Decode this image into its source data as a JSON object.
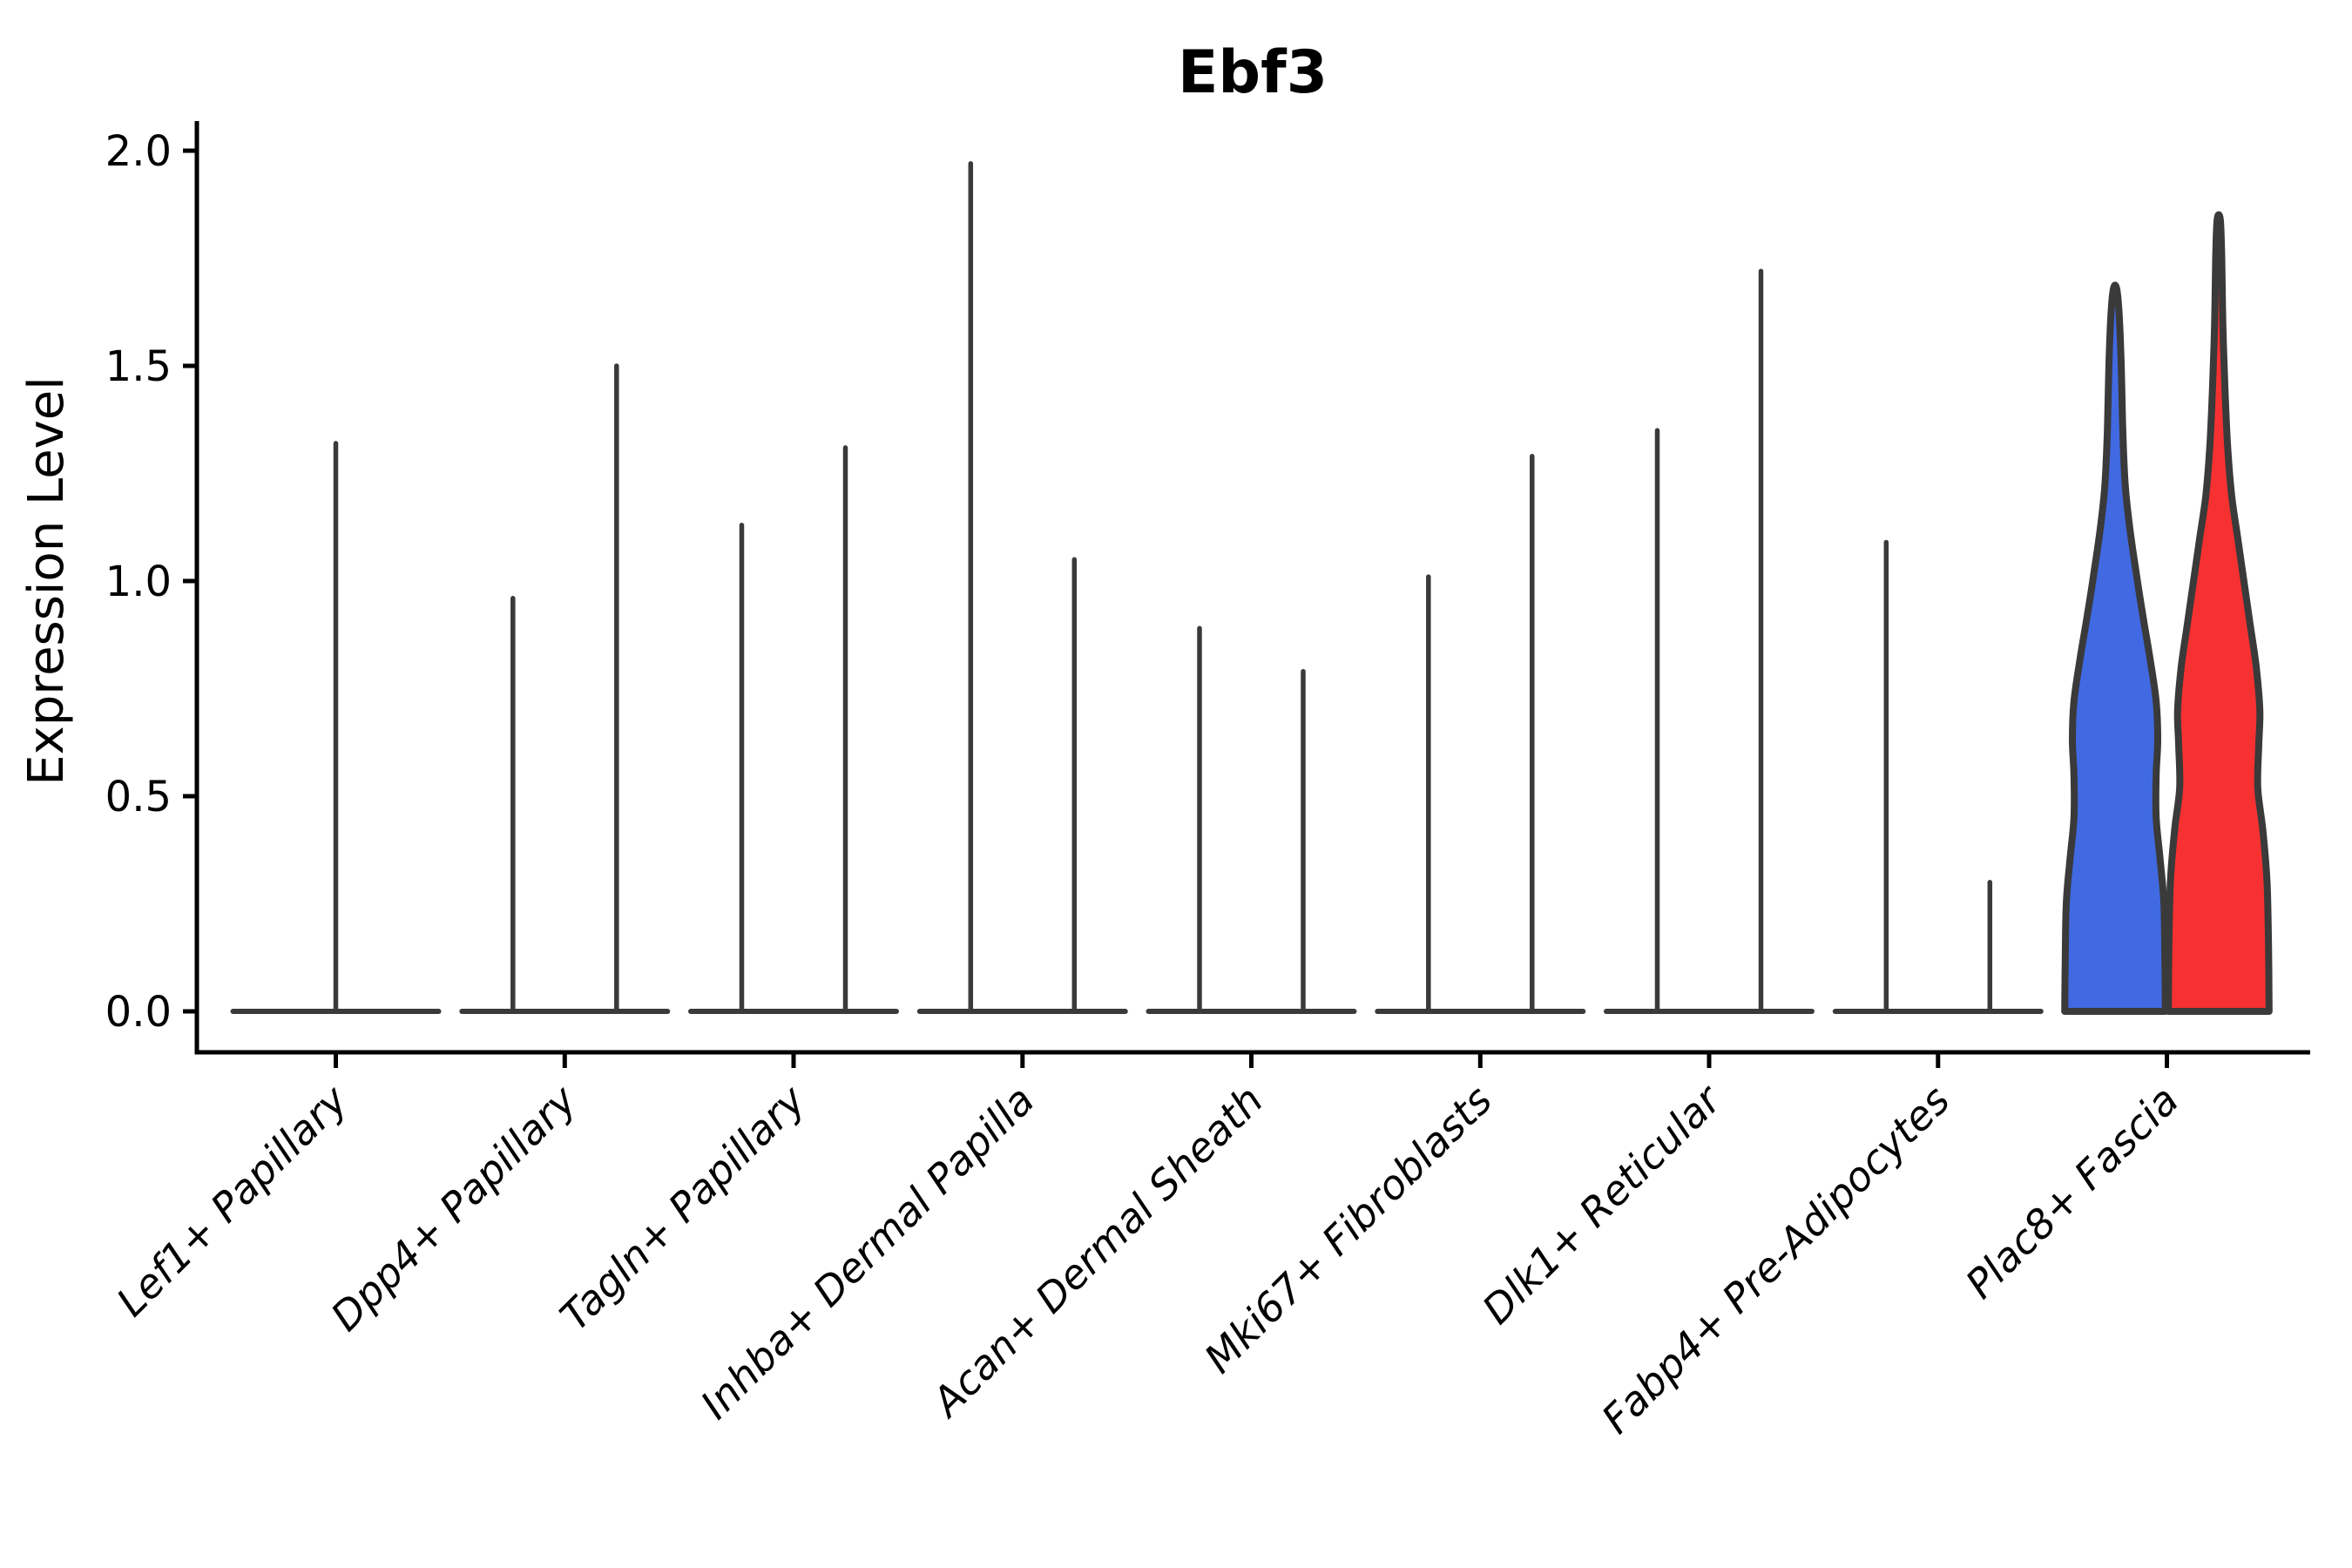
{
  "title": "Ebf3",
  "y_axis": {
    "label": "Expression Level",
    "tick_labels": [
      "0.0",
      "0.5",
      "1.0",
      "1.5",
      "2.0"
    ]
  },
  "chart_data": {
    "type": "violin",
    "title": "Ebf3",
    "xlabel": "",
    "ylabel": "Expression Level",
    "ylim": [
      0.0,
      2.0
    ],
    "yticks": [
      0.0,
      0.5,
      1.0,
      1.5,
      2.0
    ],
    "grid": false,
    "legend": "none",
    "background": "#ffffff",
    "outline_color": "#3a3a3a",
    "axis_color": "#000000",
    "split_colors": {
      "left": "#4169e1",
      "right": "#f73131"
    },
    "categories": [
      "Lef1+ Papillary",
      "Dpp4+ Papillary",
      "Tagln+ Papillary",
      "Inhba+ Dermal Papilla",
      "Acan+ Dermal Sheath",
      "Mki67+ Fibroblasts",
      "Dlk1+ Reticular",
      "Fabp4+ Pre-Adipocytes",
      "Plac8+ Fascia"
    ],
    "groups": [
      {
        "category": "Lef1+ Papillary",
        "violins": [
          {
            "position": "center",
            "style": "spike",
            "max": 1.32
          }
        ]
      },
      {
        "category": "Dpp4+ Papillary",
        "violins": [
          {
            "position": "left",
            "style": "spike",
            "max": 0.96
          },
          {
            "position": "right",
            "style": "spike",
            "max": 1.5
          }
        ]
      },
      {
        "category": "Tagln+ Papillary",
        "violins": [
          {
            "position": "left",
            "style": "spike",
            "max": 1.13
          },
          {
            "position": "right",
            "style": "spike",
            "max": 1.31
          }
        ]
      },
      {
        "category": "Inhba+ Dermal Papilla",
        "violins": [
          {
            "position": "left",
            "style": "spike",
            "max": 1.97
          },
          {
            "position": "right",
            "style": "spike",
            "max": 1.05
          }
        ]
      },
      {
        "category": "Acan+ Dermal Sheath",
        "violins": [
          {
            "position": "left",
            "style": "spike",
            "max": 0.89
          },
          {
            "position": "right",
            "style": "spike",
            "max": 0.79
          }
        ]
      },
      {
        "category": "Mki67+ Fibroblasts",
        "violins": [
          {
            "position": "left",
            "style": "spike",
            "max": 1.01
          },
          {
            "position": "right",
            "style": "spike",
            "max": 1.29
          }
        ]
      },
      {
        "category": "Dlk1+ Reticular",
        "violins": [
          {
            "position": "left",
            "style": "spike",
            "max": 1.35
          },
          {
            "position": "right",
            "style": "spike",
            "max": 1.72
          }
        ]
      },
      {
        "category": "Fabp4+ Pre-Adipocytes",
        "violins": [
          {
            "position": "left",
            "style": "spike",
            "max": 1.09
          },
          {
            "position": "right",
            "style": "spike",
            "max": 0.3
          }
        ]
      },
      {
        "category": "Plac8+ Fascia",
        "violins": [
          {
            "position": "left",
            "style": "filled",
            "max": 1.68,
            "fill": "#4169e1",
            "profile": [
              [
                0,
                0.98
              ],
              [
                0.12,
                0.97
              ],
              [
                0.25,
                0.95
              ],
              [
                0.35,
                0.88
              ],
              [
                0.45,
                0.8
              ],
              [
                0.55,
                0.8
              ],
              [
                0.63,
                0.83
              ],
              [
                0.72,
                0.8
              ],
              [
                0.82,
                0.68
              ],
              [
                0.92,
                0.54
              ],
              [
                1.02,
                0.41
              ],
              [
                1.12,
                0.29
              ],
              [
                1.22,
                0.2
              ],
              [
                1.35,
                0.15
              ],
              [
                1.5,
                0.12
              ],
              [
                1.62,
                0.08
              ],
              [
                1.68,
                0.03
              ]
            ]
          },
          {
            "position": "right",
            "style": "filled",
            "max": 1.84,
            "fill": "#f73131",
            "profile": [
              [
                0,
                0.98
              ],
              [
                0.15,
                0.97
              ],
              [
                0.3,
                0.94
              ],
              [
                0.42,
                0.86
              ],
              [
                0.52,
                0.76
              ],
              [
                0.62,
                0.78
              ],
              [
                0.7,
                0.8
              ],
              [
                0.8,
                0.73
              ],
              [
                0.9,
                0.61
              ],
              [
                1.0,
                0.49
              ],
              [
                1.1,
                0.37
              ],
              [
                1.2,
                0.25
              ],
              [
                1.32,
                0.17
              ],
              [
                1.45,
                0.12
              ],
              [
                1.6,
                0.08
              ],
              [
                1.75,
                0.06
              ],
              [
                1.84,
                0.03
              ]
            ]
          }
        ]
      }
    ]
  }
}
